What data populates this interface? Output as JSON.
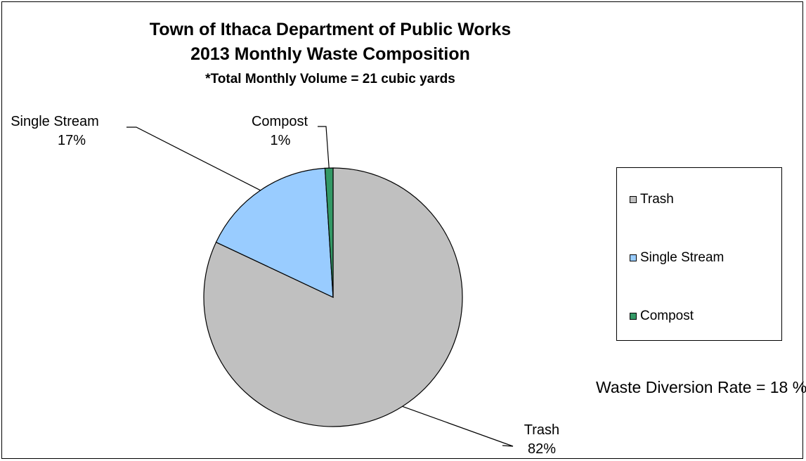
{
  "chart_data": {
    "type": "pie",
    "title": "Town of Ithaca Department of Public Works",
    "subtitle": "2013 Monthly Waste Composition",
    "note": "*Total Monthly Volume = 21 cubic yards",
    "slices": [
      {
        "name": "Trash",
        "percent": 82,
        "label": "82%",
        "color": "#c0c0c0"
      },
      {
        "name": "Single Stream",
        "percent": 17,
        "label": "17%",
        "color": "#99ccff"
      },
      {
        "name": "Compost",
        "percent": 1,
        "label": "1%",
        "color": "#339966"
      }
    ],
    "legend": [
      "Trash",
      "Single Stream",
      "Compost"
    ],
    "legend_position": "right",
    "annotation": "Waste Diversion Rate = 18 %"
  }
}
